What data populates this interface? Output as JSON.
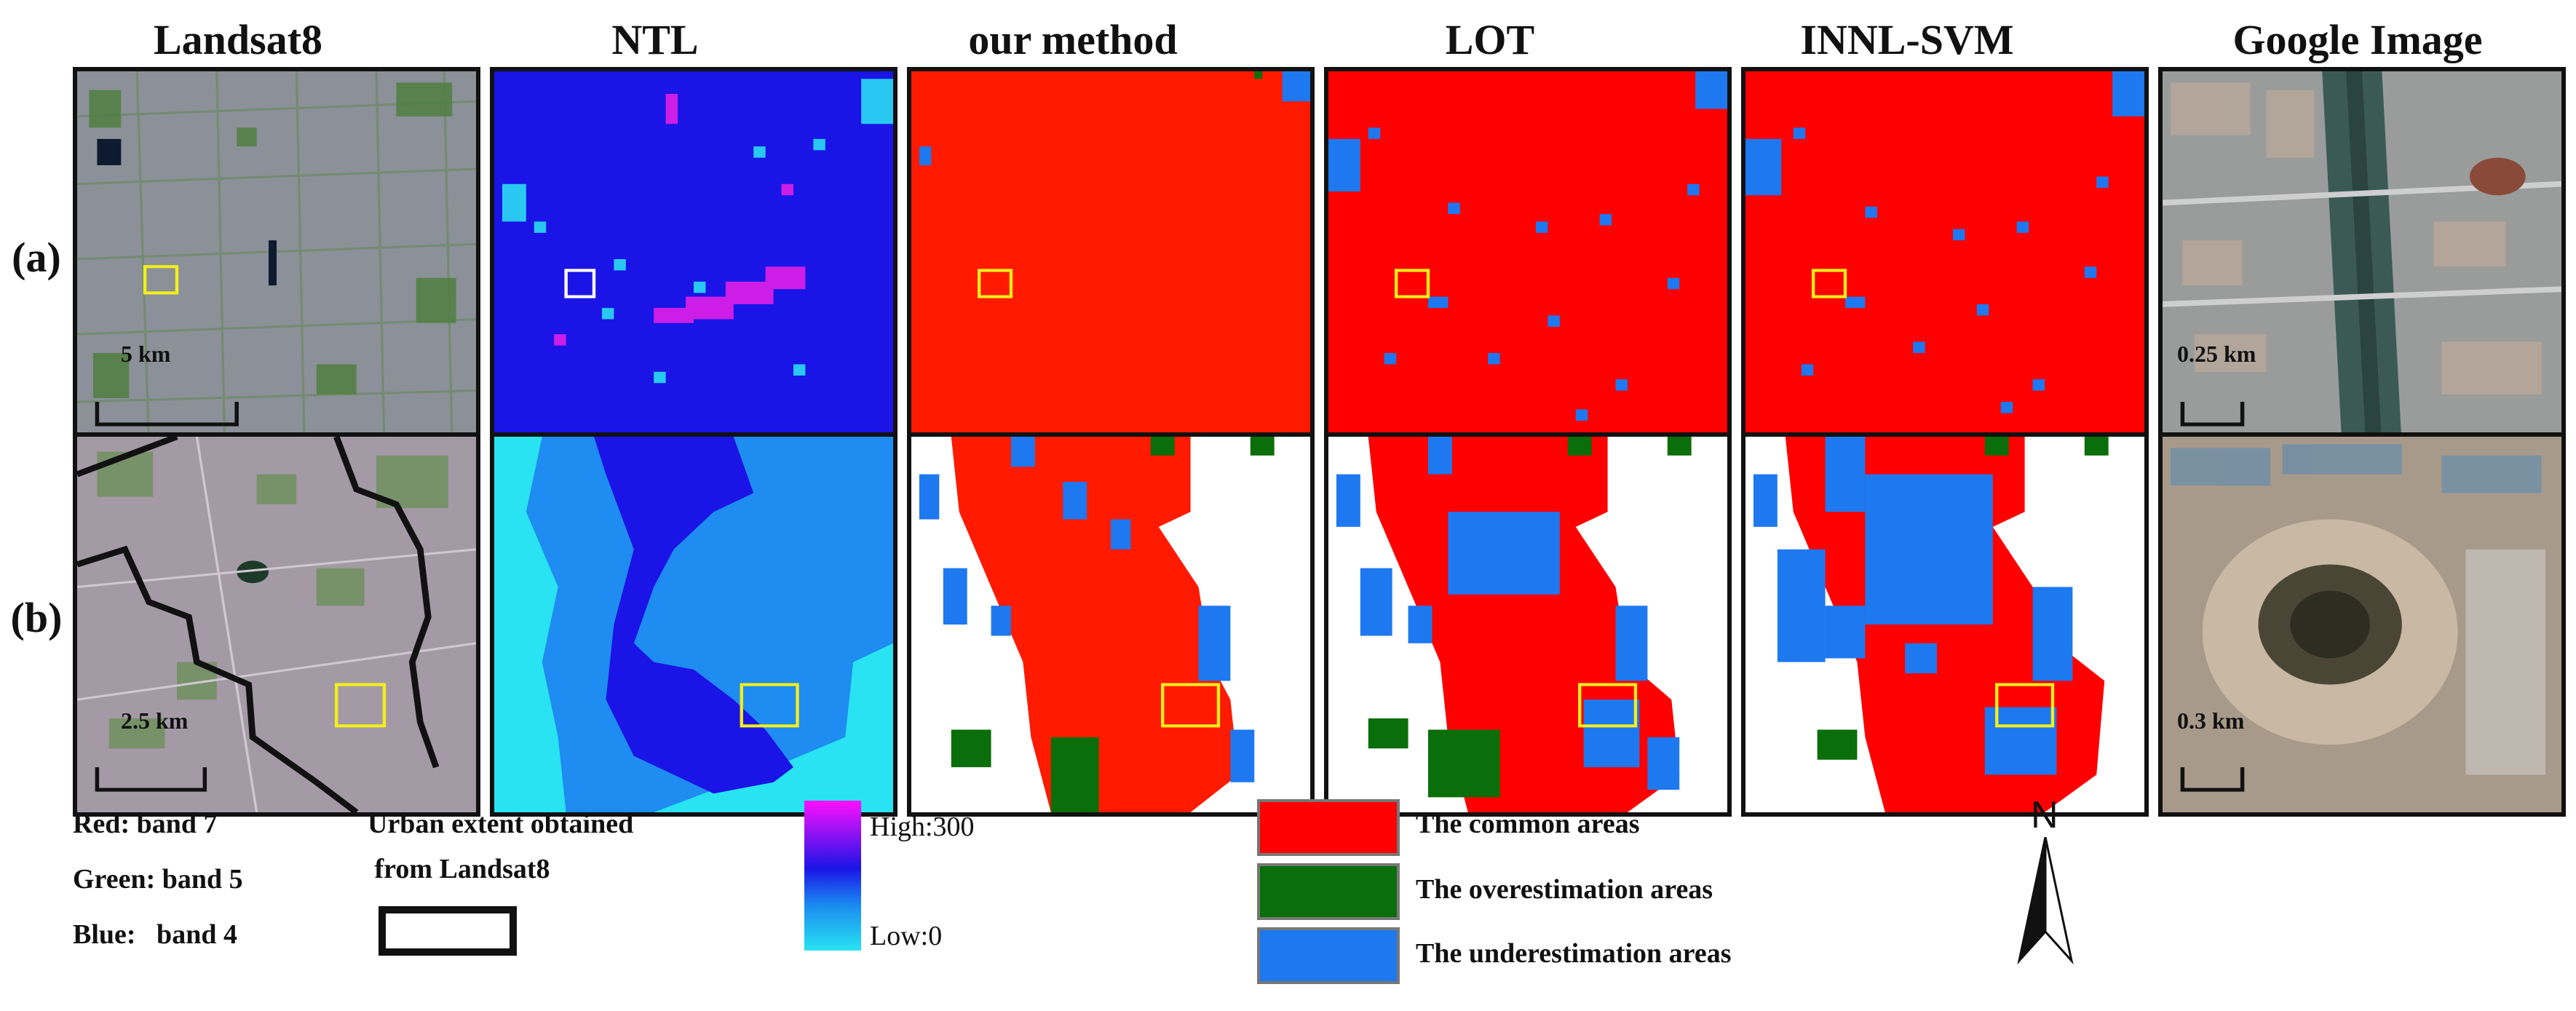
{
  "columns": [
    "Landsat8",
    "NTL",
    "our method",
    "LOT",
    "INNL-SVM",
    "Google Image"
  ],
  "rows": [
    "(a)",
    "(b)"
  ],
  "scale_bars": {
    "row_a_landsat": "5 km",
    "row_b_landsat": "2.5 km",
    "row_a_google": "0.25 km",
    "row_b_google": "0.3 km"
  },
  "band_legend": [
    "Red: band 7",
    "Green: band 5",
    "Blue:   band 4"
  ],
  "urban_legend": {
    "line1": "Urban extent obtained",
    "line2": " from Landsat8"
  },
  "ntl_legend": {
    "high": "High:300",
    "low": "Low:0"
  },
  "class_legend": [
    {
      "label": "The common areas",
      "color": "#ff0000"
    },
    {
      "label": "The overestimation areas",
      "color": "#0a6e0a"
    },
    {
      "label": "The underestimation areas",
      "color": "#1e78f0"
    }
  ],
  "north_label": "N",
  "colors": {
    "ntl_background": "#1a14e6",
    "ntl_low": "#29e3f2",
    "ntl_high": "#ff10ff",
    "classified_red": "#ff0000",
    "our_method_red": "#ff1a00",
    "overestimation_green": "#0a6e0a",
    "underestimation_blue": "#1e78f0",
    "highlight_yellow": "#f2ef1a"
  }
}
